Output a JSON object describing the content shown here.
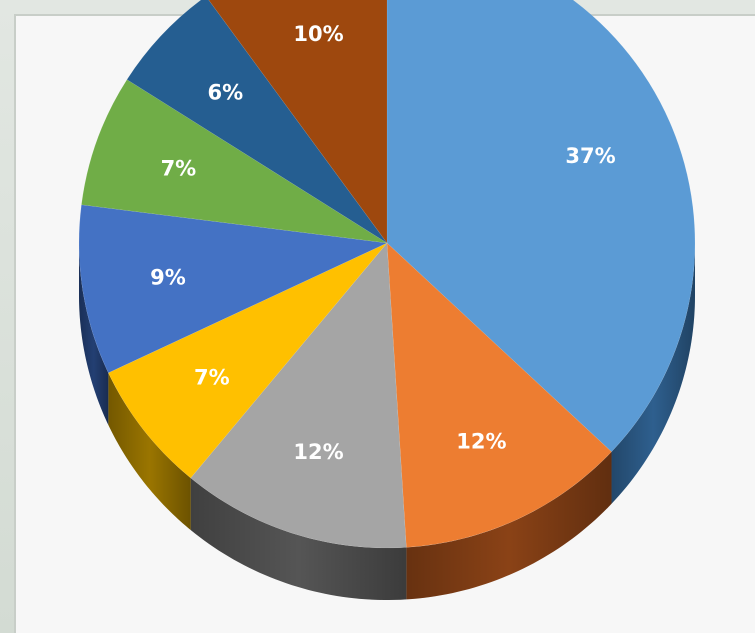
{
  "chart_data": {
    "type": "pie",
    "title": "",
    "start_angle_deg": 0,
    "direction": "clockwise",
    "three_d": true,
    "legend": "none",
    "slices": [
      {
        "value": 37,
        "label": "37%",
        "color": "#5b9bd5",
        "side_color": "#2e5f8e"
      },
      {
        "value": 12,
        "label": "12%",
        "color": "#ed7d31",
        "side_color": "#8a4216"
      },
      {
        "value": 12,
        "label": "12%",
        "color": "#a5a5a5",
        "side_color": "#555555"
      },
      {
        "value": 7,
        "label": "7%",
        "color": "#ffc000",
        "side_color": "#9a7500"
      },
      {
        "value": 9,
        "label": "9%",
        "color": "#4472c4",
        "side_color": "#233f73"
      },
      {
        "value": 7,
        "label": "7%",
        "color": "#70ad47",
        "side_color": "#3c6326"
      },
      {
        "value": 6,
        "label": "6%",
        "color": "#255e91",
        "side_color": "#123350"
      },
      {
        "value": 10,
        "label": "10%",
        "color": "#9e480e",
        "side_color": "#4f2406"
      }
    ]
  }
}
